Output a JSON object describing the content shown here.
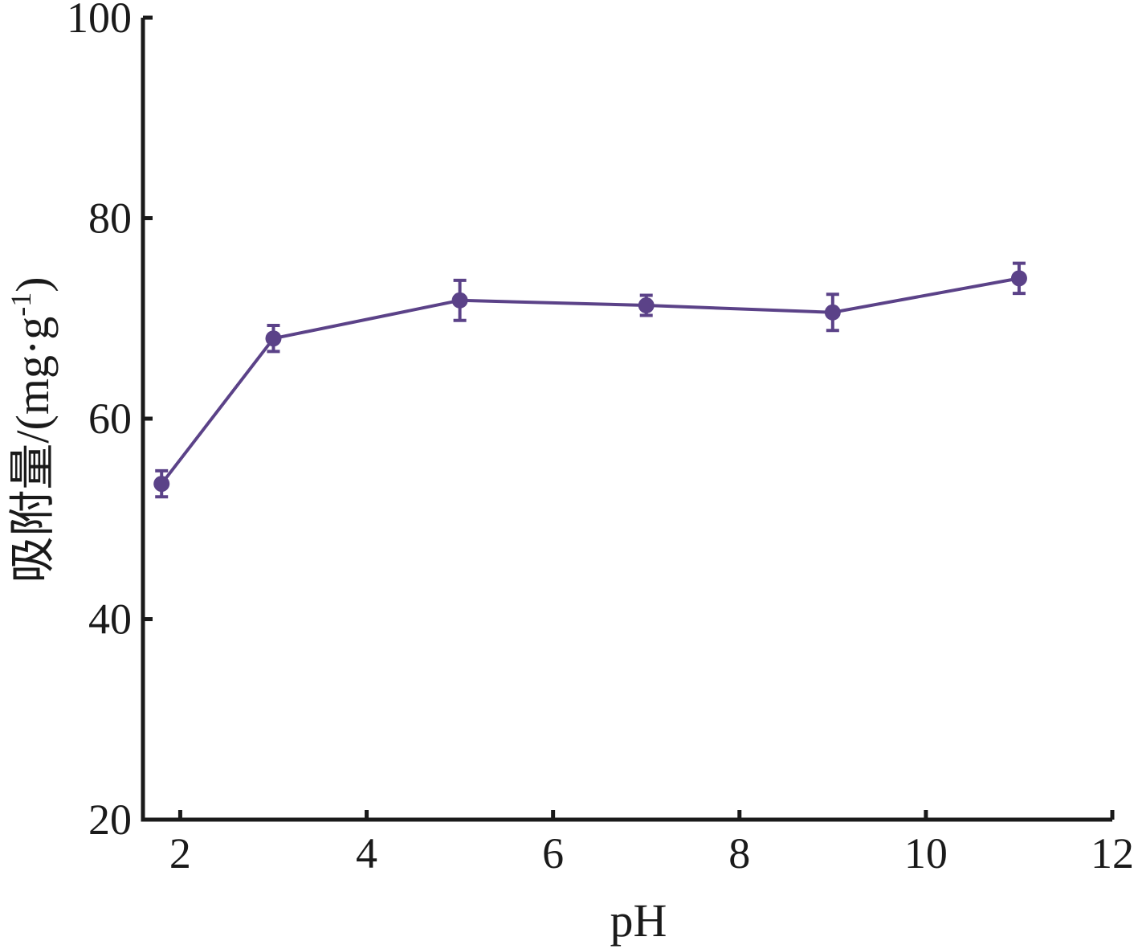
{
  "chart_data": {
    "type": "line",
    "xlabel": "pH",
    "ylabel_main": "吸附量/(mg·g",
    "ylabel_sup": "-1",
    "ylabel_end": ")",
    "xlim": [
      1.6,
      12
    ],
    "ylim": [
      20,
      100
    ],
    "xticks": [
      2,
      4,
      6,
      8,
      10,
      12
    ],
    "yticks": [
      20,
      40,
      60,
      80,
      100
    ],
    "grid": false,
    "series": [
      {
        "color": "#5b4288",
        "x": [
          1.8,
          3,
          5,
          7,
          9,
          11
        ],
        "y": [
          53.5,
          68.0,
          71.8,
          71.3,
          70.6,
          74.0
        ],
        "err": [
          1.3,
          1.3,
          2.0,
          1.0,
          1.8,
          1.5
        ]
      }
    ]
  }
}
